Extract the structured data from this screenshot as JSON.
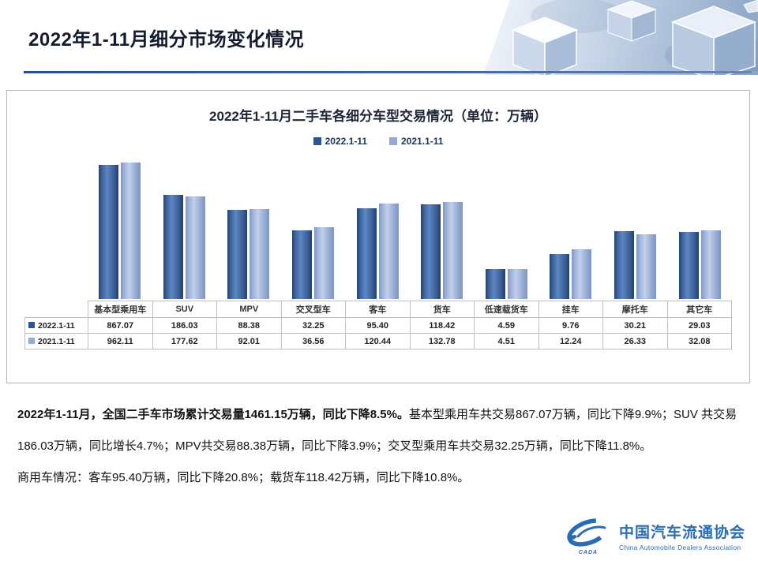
{
  "slide": {
    "title": "2022年1-11月细分市场变化情况"
  },
  "chart_data": {
    "type": "bar",
    "title": "2022年1-11月二手车各细分车型交易情况（单位：万辆）",
    "unit": "万辆",
    "scale": "log",
    "yaxis_visible": false,
    "legend_position": "top",
    "categories": [
      "基本型乘用车",
      "SUV",
      "MPV",
      "交叉型车",
      "客车",
      "货车",
      "低速载货车",
      "挂车",
      "摩托车",
      "其它车"
    ],
    "series": [
      {
        "name": "2022.1-11",
        "color": "#2e5496",
        "values": [
          "867.07",
          "186.03",
          "88.38",
          "32.25",
          "95.40",
          "118.42",
          "4.59",
          "9.76",
          "30.21",
          "29.03"
        ]
      },
      {
        "name": "2021.1-11",
        "color": "#94a9d3",
        "values": [
          "962.11",
          "177.62",
          "92.01",
          "36.56",
          "120.44",
          "132.78",
          "4.51",
          "12.24",
          "26.33",
          "32.08"
        ]
      }
    ]
  },
  "body": {
    "p1_bold": "2022年1-11月，全国二手车市场累计交易量1461.15万辆，同比下降8.5%。",
    "p1_rest": "基本型乘用车共交易867.07万辆，同比下降9.9%；SUV 共交易186.03万辆，同比增长4.7%；MPV共交易88.38万辆，同比下降3.9%；交叉型乘用车共交易32.25万辆，同比下降11.8%。",
    "p2": "商用车情况：客车95.40万辆，同比下降20.8%；载货车118.42万辆，同比下降10.8%。"
  },
  "logo": {
    "name_cn": "中国汽车流通协会",
    "name_en": "China Automobile Dealers Association",
    "abbr": "CADA"
  }
}
